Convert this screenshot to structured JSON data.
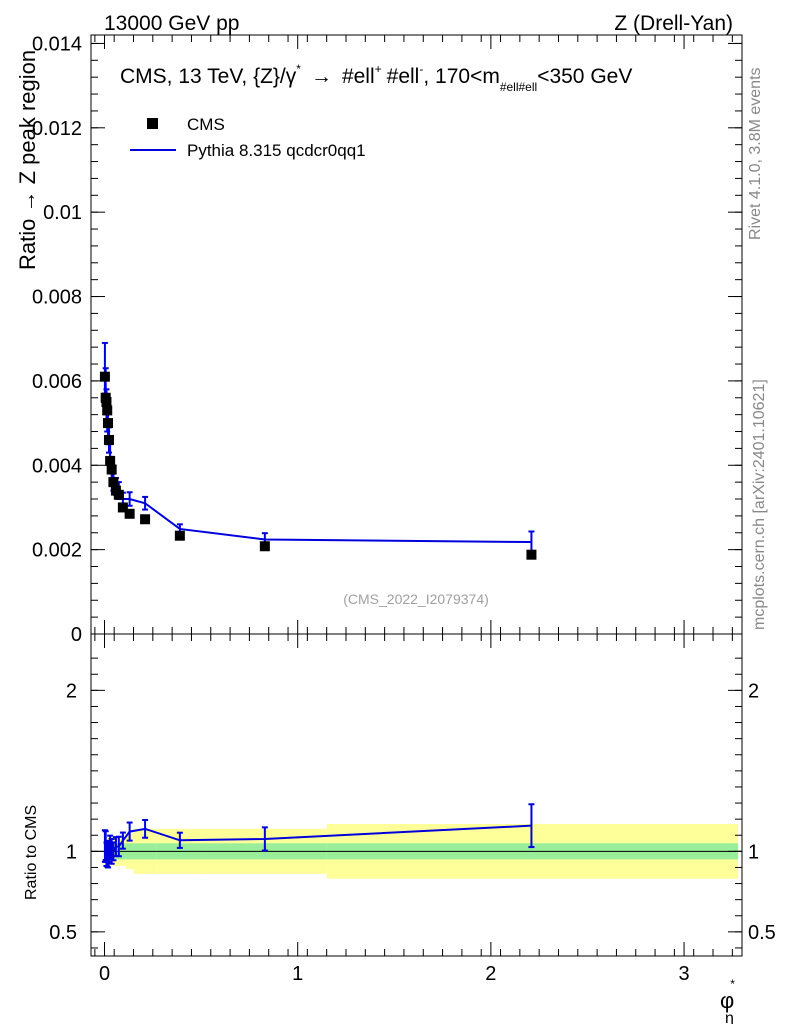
{
  "header": {
    "left": "13000 GeV pp",
    "right": "Z (Drell-Yan)"
  },
  "side_labels": {
    "rivet": "Rivet 4.1.0,  3.8M events",
    "mcplots": "mcplots.cern.ch [arXiv:2401.10621]"
  },
  "chart_data": {
    "type": "scatter",
    "title_main": "CMS, 13 TeV, {Z}/γ",
    "title_sup": "*",
    "title_arrow": "→",
    "title_ell1": "#ell",
    "title_plus": "+",
    "title_ell2": "#ell",
    "title_minus": "-",
    "title_tail1": ", 170<m",
    "title_sub": "#ell#ell",
    "title_tail2": "<350 GeV",
    "ylabel": "Ratio → Z peak region",
    "ratio_ylabel": "Ratio to CMS",
    "xlabel": "φ",
    "xlabel_sup": "*",
    "xlabel_sub": "η",
    "watermark": "(CMS_2022_I2079374)",
    "xlim": [
      -0.07,
      3.3
    ],
    "ylim": [
      0,
      0.0142
    ],
    "ratio_ylim": [
      0.35,
      2.35
    ],
    "x_ticks": [
      0,
      1,
      2,
      3
    ],
    "x_tick_labels": [
      "0",
      "1",
      "2",
      "3"
    ],
    "y_ticks": [
      0,
      0.002,
      0.004,
      0.006,
      0.008,
      0.01,
      0.012,
      0.014
    ],
    "y_tick_labels": [
      "0",
      "0.002",
      "0.004",
      "0.006",
      "0.008",
      "0.01",
      "0.012",
      "0.014"
    ],
    "ratio_ticks": [
      0.5,
      1,
      2
    ],
    "ratio_tick_labels": [
      "0.5",
      "1",
      "2"
    ],
    "legend": [
      {
        "name": "CMS",
        "style": "marker",
        "color": "#000000"
      },
      {
        "name": "Pythia 8.315 qcdcr0qq1",
        "style": "line",
        "color": "#0000dd"
      }
    ],
    "cms": {
      "x": [
        0.002,
        0.006,
        0.01,
        0.014,
        0.018,
        0.023,
        0.029,
        0.037,
        0.046,
        0.059,
        0.074,
        0.095,
        0.13,
        0.21,
        0.39,
        0.83,
        2.21
      ],
      "y": [
        0.0061,
        0.0056,
        0.0055,
        0.0053,
        0.005,
        0.0046,
        0.0041,
        0.0039,
        0.0036,
        0.0034,
        0.0033,
        0.003,
        0.00285,
        0.00272,
        0.00233,
        0.00208,
        0.00188
      ],
      "bins": [
        [
          0,
          0.004
        ],
        [
          0.004,
          0.008
        ],
        [
          0.008,
          0.012
        ],
        [
          0.012,
          0.016
        ],
        [
          0.016,
          0.02
        ],
        [
          0.02,
          0.026
        ],
        [
          0.026,
          0.032
        ],
        [
          0.032,
          0.042
        ],
        [
          0.042,
          0.05
        ],
        [
          0.05,
          0.068
        ],
        [
          0.068,
          0.08
        ],
        [
          0.08,
          0.11
        ],
        [
          0.11,
          0.15
        ],
        [
          0.15,
          0.27
        ],
        [
          0.27,
          0.51
        ],
        [
          0.51,
          1.15
        ],
        [
          1.15,
          3.28
        ]
      ],
      "stat_band": [
        0.05,
        0.05,
        0.05,
        0.05,
        0.05,
        0.05,
        0.05,
        0.05,
        0.05,
        0.05,
        0.05,
        0.05,
        0.05,
        0.05,
        0.05,
        0.05,
        0.05
      ],
      "total_band": [
        0.09,
        0.09,
        0.09,
        0.09,
        0.09,
        0.09,
        0.09,
        0.09,
        0.09,
        0.09,
        0.09,
        0.09,
        0.11,
        0.14,
        0.14,
        0.14,
        0.17
      ]
    },
    "pythia": {
      "name": "Pythia 8.315 qcdcr0qq1",
      "x": [
        0.002,
        0.006,
        0.01,
        0.014,
        0.018,
        0.023,
        0.029,
        0.037,
        0.046,
        0.059,
        0.074,
        0.095,
        0.13,
        0.21,
        0.39,
        0.83,
        2.21
      ],
      "y": [
        0.0063,
        0.0058,
        0.0054,
        0.0052,
        0.0049,
        0.0046,
        0.0042,
        0.0039,
        0.0036,
        0.0035,
        0.0034,
        0.0032,
        0.0032,
        0.0031,
        0.00249,
        0.00224,
        0.00218
      ],
      "yerr": [
        0.0006,
        0.0005,
        0.0004,
        0.0004,
        0.0004,
        0.0003,
        0.0003,
        0.0003,
        0.0002,
        0.0002,
        0.0002,
        0.00015,
        0.00016,
        0.00015,
        0.00011,
        0.00015,
        0.00025
      ]
    }
  }
}
